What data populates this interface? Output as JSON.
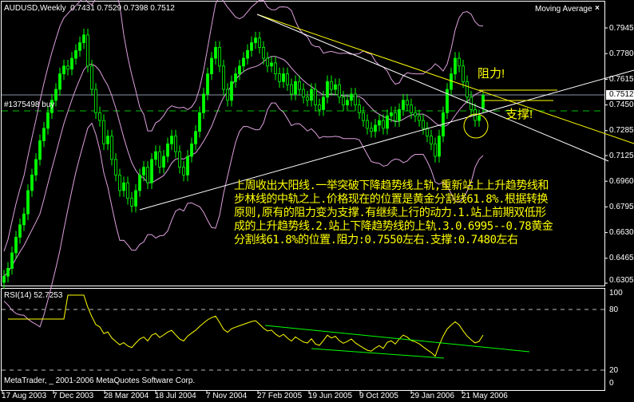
{
  "header": {
    "symbol": "AUDUSD,Weekly",
    "ohlc": "0.7431 0.7529 0.7398 0.7512"
  },
  "indicator_label": "Moving Average",
  "close_icon": "close-x-icon",
  "order_label": "#1375498 buy",
  "rsi_label": "RSI(14) 52.7253",
  "copyright": "MetaTrader, _ 2001-2006 MetaQuotes Software Corp.",
  "annotations": {
    "resistance": "阻力!",
    "support": "支撑!",
    "note": "上周收出大阳线.一举突破下降趋势线上轨,重新站上上升趋势线和步林线的中轨之上.价格现在的位置是黄金分割线61.8%.根据转换原则,原有的阻力变为支撑.有继续上行的动力.1.站上前期双低形成的上升趋势线.2.站上下降趋势线的上轨.3.0.6995--0.78黄金分割线61.8%的位置.阻力:0.7550左右.支撑:0.7480左右"
  },
  "colors": {
    "candle": "#00ff00",
    "bands": "#dda0dd",
    "rsi": "#ffff00",
    "trend_yellow": "#ffff00",
    "trend_white": "#ffffff",
    "rsi_trend": "#00ff00",
    "order_line": "#00c000"
  },
  "chart_data": {
    "type": "candlestick",
    "price_axis": {
      "ticks": [
        "0.7945",
        "0.7780",
        "0.7615",
        "0.7450",
        "0.7285",
        "0.7125",
        "0.6960",
        "0.6795",
        "0.6630",
        "0.6465",
        "0.6305"
      ],
      "current": "0.7512",
      "range": [
        0.6305,
        0.7945
      ]
    },
    "time_axis": [
      "17 Aug 2003",
      "7 Dec 2003",
      "28 Mar 2004",
      "18 Jul 2004",
      "7 Nov 2004",
      "27 Feb 2005",
      "19 Jun 2005",
      "9 Oct 2005",
      "29 Jan 2006",
      "21 May 2006"
    ],
    "rsi_axis": [
      "100",
      "80",
      "20",
      "0"
    ],
    "closes": [
      0.635,
      0.64,
      0.65,
      0.66,
      0.668,
      0.675,
      0.69,
      0.7,
      0.71,
      0.722,
      0.73,
      0.74,
      0.748,
      0.755,
      0.765,
      0.77,
      0.768,
      0.775,
      0.78,
      0.785,
      0.79,
      0.77,
      0.755,
      0.74,
      0.735,
      0.72,
      0.725,
      0.71,
      0.7,
      0.69,
      0.695,
      0.685,
      0.68,
      0.69,
      0.7,
      0.705,
      0.695,
      0.71,
      0.715,
      0.705,
      0.712,
      0.72,
      0.725,
      0.715,
      0.705,
      0.7,
      0.712,
      0.72,
      0.728,
      0.74,
      0.752,
      0.765,
      0.775,
      0.782,
      0.77,
      0.755,
      0.748,
      0.76,
      0.765,
      0.77,
      0.775,
      0.78,
      0.785,
      0.788,
      0.782,
      0.775,
      0.77,
      0.772,
      0.765,
      0.76,
      0.765,
      0.758,
      0.752,
      0.76,
      0.755,
      0.75,
      0.748,
      0.755,
      0.745,
      0.742,
      0.75,
      0.76,
      0.755,
      0.758,
      0.75,
      0.745,
      0.748,
      0.752,
      0.745,
      0.74,
      0.735,
      0.73,
      0.728,
      0.732,
      0.735,
      0.73,
      0.738,
      0.74,
      0.735,
      0.742,
      0.748,
      0.745,
      0.74,
      0.738,
      0.735,
      0.73,
      0.725,
      0.72,
      0.712,
      0.725,
      0.74,
      0.755,
      0.765,
      0.775,
      0.77,
      0.76,
      0.75,
      0.742,
      0.735,
      0.738,
      0.751
    ],
    "last_bar": {
      "open": 0.7431,
      "high": 0.7529,
      "low": 0.7398,
      "close": 0.7512
    },
    "rsi_period": 14,
    "rsi_levels": [
      20,
      80
    ]
  }
}
